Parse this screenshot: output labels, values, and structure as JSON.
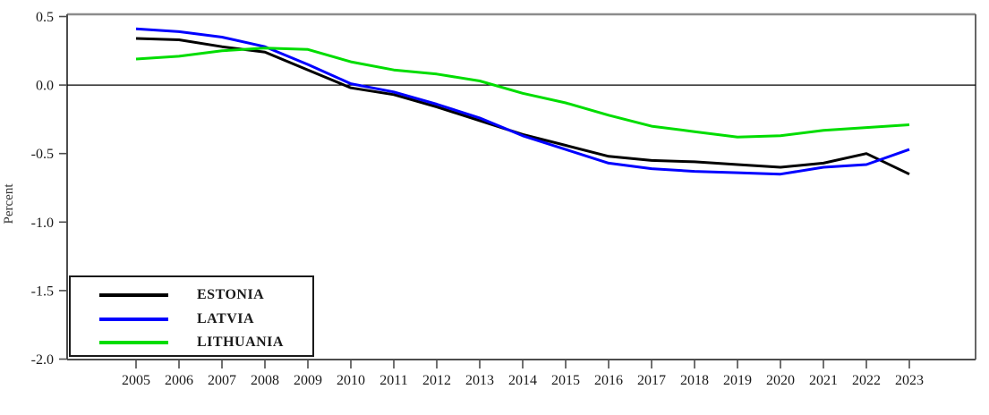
{
  "chart_data": {
    "type": "line",
    "title": "",
    "xlabel": "",
    "ylabel": "Percent",
    "x": [
      2005,
      2006,
      2007,
      2008,
      2009,
      2010,
      2011,
      2012,
      2013,
      2014,
      2015,
      2016,
      2017,
      2018,
      2019,
      2020,
      2021,
      2022,
      2023
    ],
    "series": [
      {
        "name": "ESTONIA",
        "color": "#000000",
        "values": [
          0.34,
          0.33,
          0.28,
          0.24,
          0.11,
          -0.02,
          -0.07,
          -0.16,
          -0.26,
          -0.36,
          -0.44,
          -0.52,
          -0.55,
          -0.56,
          -0.58,
          -0.6,
          -0.57,
          -0.5,
          -0.65
        ]
      },
      {
        "name": "LATVIA",
        "color": "#0000ff",
        "values": [
          0.41,
          0.39,
          0.35,
          0.28,
          0.15,
          0.01,
          -0.05,
          -0.14,
          -0.24,
          -0.37,
          -0.47,
          -0.57,
          -0.61,
          -0.63,
          -0.64,
          -0.65,
          -0.6,
          -0.58,
          -0.47
        ]
      },
      {
        "name": "LITHUANIA",
        "color": "#00dd00",
        "values": [
          0.19,
          0.21,
          0.25,
          0.27,
          0.26,
          0.17,
          0.11,
          0.08,
          0.03,
          -0.06,
          -0.13,
          -0.22,
          -0.3,
          -0.34,
          -0.38,
          -0.37,
          -0.33,
          -0.31,
          -0.29
        ]
      }
    ],
    "ylim": [
      -2.0,
      0.5
    ],
    "yticks": [
      {
        "value": 0.5,
        "label": "0.5"
      },
      {
        "value": 0.0,
        "label": "0.0"
      },
      {
        "value": -0.5,
        "label": "-0.5"
      },
      {
        "value": -1.0,
        "label": "-1.0"
      },
      {
        "value": -1.5,
        "label": "-1.5"
      },
      {
        "value": -2.0,
        "label": "-2.0"
      }
    ],
    "grid": false,
    "zero_line": true,
    "legend_position": "bottom-left",
    "frame_colors": {
      "top": "#8c8c8c",
      "right": "#666666",
      "left": "#4d4d4d",
      "bottom": "#4d4d4d"
    }
  }
}
